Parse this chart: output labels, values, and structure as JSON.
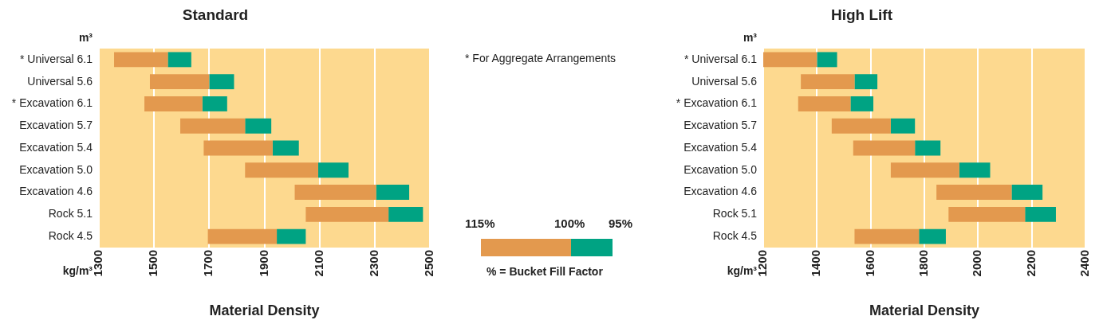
{
  "chart_data": [
    {
      "type": "bar",
      "orientation": "horizontal",
      "title": "Standard",
      "xlabel": "Material Density",
      "ylabel": "m³",
      "annotations": [
        "kg/m³"
      ],
      "categories": [
        "* Universal 6.1",
        "Universal 5.6",
        "* Excavation 6.1",
        "Excavation 5.7",
        "Excavation 5.4",
        "Excavation 5.0",
        "Excavation 4.6",
        "Rock 5.1",
        "Rock 4.5"
      ],
      "series": [
        {
          "color": "#e3994e",
          "base": [
            1355,
            1485,
            1465,
            1595,
            1680,
            1830,
            2010,
            2050,
            1695
          ],
          "values": [
            195,
            215,
            210,
            235,
            250,
            265,
            295,
            300,
            250
          ]
        },
        {
          "color": "#00a383",
          "base": [
            1550,
            1700,
            1675,
            1830,
            1930,
            2095,
            2305,
            2350,
            1945
          ],
          "values": [
            85,
            90,
            90,
            95,
            95,
            110,
            120,
            125,
            105
          ]
        }
      ],
      "xlim": [
        1300,
        2500
      ],
      "xticks": [
        1300,
        1500,
        1700,
        1900,
        2100,
        2300,
        2500
      ],
      "grid": "x"
    },
    {
      "type": "other",
      "annotations": [
        "* For Aggregate Arrangements",
        "115%",
        "100%",
        "95%",
        "% = Bucket Fill Factor"
      ]
    },
    {
      "type": "bar",
      "orientation": "horizontal",
      "title": "High Lift",
      "xlabel": "Material Density",
      "ylabel": "m³",
      "annotations": [
        "kg/m³"
      ],
      "categories": [
        "* Universal 6.1",
        "Universal 5.6",
        "* Excavation 6.1",
        "Excavation 5.7",
        "Excavation 5.4",
        "Excavation 5.0",
        "Excavation 4.6",
        "Rock 5.1",
        "Rock 4.5"
      ],
      "series": [
        {
          "color": "#e3994e",
          "base": [
            1200,
            1340,
            1330,
            1455,
            1535,
            1675,
            1845,
            1890,
            1540
          ],
          "values": [
            200,
            200,
            195,
            220,
            230,
            255,
            280,
            285,
            240
          ]
        },
        {
          "color": "#00a383",
          "base": [
            1400,
            1540,
            1525,
            1675,
            1765,
            1930,
            2125,
            2175,
            1780
          ],
          "values": [
            75,
            85,
            85,
            90,
            95,
            115,
            115,
            115,
            100
          ]
        }
      ],
      "xlim": [
        1200,
        2400
      ],
      "xticks": [
        1200,
        1400,
        1600,
        1800,
        2000,
        2200,
        2400
      ],
      "grid": "x"
    }
  ]
}
